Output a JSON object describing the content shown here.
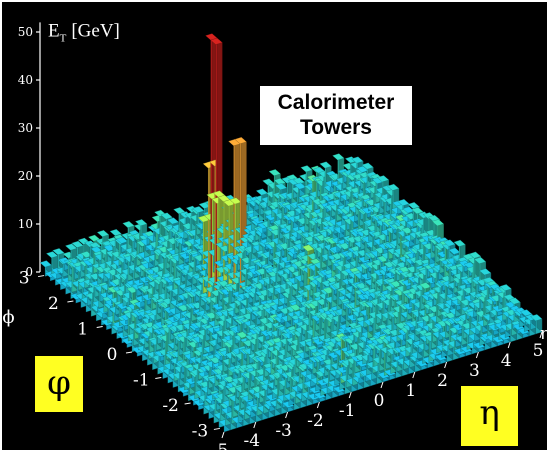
{
  "chart_data": {
    "type": "lego-3d-bar",
    "title": "Calorimeter Towers",
    "zlabel": {
      "main": "E",
      "sub": "T",
      "unit": "[GeV]"
    },
    "zticks": [
      0,
      10,
      20,
      30,
      40,
      50
    ],
    "zlim": [
      0,
      52
    ],
    "xaxis": {
      "name": "η",
      "ticks": [
        -5,
        -4,
        -3,
        -2,
        -1,
        0,
        1,
        2,
        3,
        4,
        5
      ],
      "range": [
        -5,
        5
      ]
    },
    "yaxis": {
      "name": "ϕ",
      "ticks": [
        -3,
        -2,
        -1,
        0,
        1,
        2,
        3
      ],
      "range": [
        -3.14,
        3.14
      ]
    },
    "background_level_gev": 3,
    "peaks": [
      {
        "eta": -1.3,
        "phi": 1.2,
        "et": 51
      },
      {
        "eta": -1.0,
        "phi": 1.4,
        "et": 30
      },
      {
        "eta": -0.8,
        "phi": 1.0,
        "et": 30
      },
      {
        "eta": -1.6,
        "phi": 1.0,
        "et": 27
      },
      {
        "eta": 0.3,
        "phi": -0.3,
        "et": 12
      },
      {
        "eta": 0.6,
        "phi": 0.2,
        "et": 10
      },
      {
        "eta": 1.4,
        "phi": -1.4,
        "et": 7
      },
      {
        "eta": -2.2,
        "phi": -1.8,
        "et": 6
      }
    ],
    "colormap": [
      "#13b8e8",
      "#3ad8a6",
      "#9ce94f",
      "#e8ec3c",
      "#f0b437",
      "#e86a2c",
      "#c8201d"
    ],
    "grid": false
  },
  "badges": {
    "phi": "φ",
    "eta": "η"
  },
  "title_lines": [
    "Calorimeter",
    "Towers"
  ],
  "axis_names": {
    "eta": "η",
    "phi": "ϕ"
  }
}
